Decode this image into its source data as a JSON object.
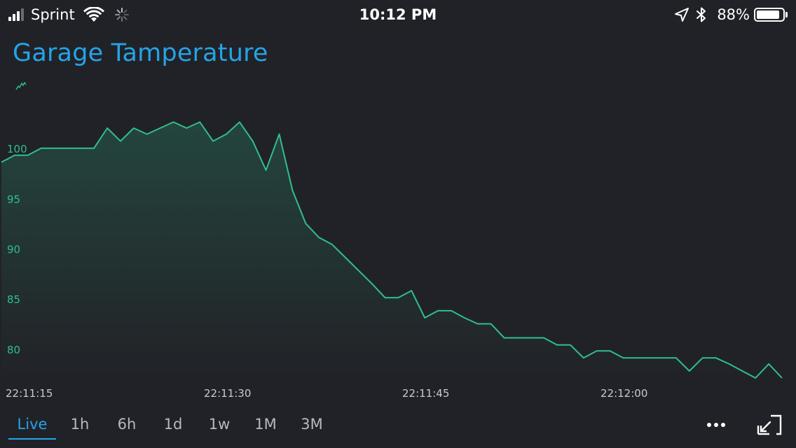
{
  "status_bar": {
    "carrier": "Sprint",
    "time": "10:12 PM",
    "battery_percent": "88%",
    "battery_level": 0.88,
    "signal_bars_filled": 3,
    "signal_bars_total": 4,
    "icons": [
      "signal-bars-icon",
      "wifi-icon",
      "activity-spinner-icon",
      "location-arrow-icon",
      "bluetooth-icon",
      "battery-icon"
    ]
  },
  "title": "Garage Tamperature",
  "colors": {
    "title": "#24a4e8",
    "line": "#2fbf8d",
    "background": "#212227",
    "active_tab": "#24a4e8",
    "inactive_tab": "#b8b8be"
  },
  "range_tabs": [
    {
      "label": "Live",
      "active": true
    },
    {
      "label": "1h",
      "active": false
    },
    {
      "label": "6h",
      "active": false
    },
    {
      "label": "1d",
      "active": false
    },
    {
      "label": "1w",
      "active": false
    },
    {
      "label": "1M",
      "active": false
    },
    {
      "label": "3M",
      "active": false
    }
  ],
  "toolbar": {
    "more_icon": "more-dots-icon",
    "fullscreen_icon": "exit-fullscreen-icon"
  },
  "chart_data": {
    "type": "area",
    "title": "Garage Tamperature",
    "xlabel": "",
    "ylabel": "",
    "grid": false,
    "y_ticks": [
      "80",
      "85",
      "90",
      "95",
      "100"
    ],
    "y_tick_values": [
      80,
      85,
      90,
      95,
      100
    ],
    "ylim": [
      77.2,
      104.4
    ],
    "x_ticks": [
      "22:11:15",
      "22:11:30",
      "22:11:45",
      "22:12:00"
    ],
    "xlim": [
      0,
      60
    ],
    "series": [
      {
        "x": [
          0,
          1,
          2,
          3,
          4,
          5,
          6,
          7,
          8,
          9,
          10,
          11,
          12,
          13,
          14,
          15,
          16,
          17,
          18,
          19,
          20,
          21,
          22,
          23,
          24,
          25,
          26,
          27,
          28,
          29,
          30,
          31,
          32,
          33,
          34,
          35,
          36,
          37,
          38,
          39,
          40,
          41,
          42,
          43,
          44,
          45,
          46,
          47,
          48,
          49,
          50,
          51,
          52,
          53,
          54,
          55,
          56,
          57,
          58,
          59
        ],
        "values": [
          98.7,
          99.4,
          99.4,
          100.1,
          100.1,
          100.1,
          100.1,
          100.1,
          102.1,
          100.8,
          102.1,
          101.5,
          102.1,
          102.7,
          102.1,
          102.7,
          100.8,
          101.5,
          102.7,
          100.8,
          97.9,
          101.5,
          95.9,
          92.6,
          91.2,
          90.5,
          89.2,
          87.9,
          86.6,
          85.2,
          85.2,
          85.9,
          83.2,
          83.9,
          83.9,
          83.2,
          82.6,
          82.6,
          81.2,
          81.2,
          81.2,
          81.2,
          80.5,
          80.5,
          79.2,
          79.9,
          79.9,
          79.2,
          79.2,
          79.2,
          79.2,
          79.2,
          77.9,
          79.2,
          79.2,
          78.6,
          77.9,
          77.2,
          78.6,
          77.2
        ]
      }
    ]
  }
}
